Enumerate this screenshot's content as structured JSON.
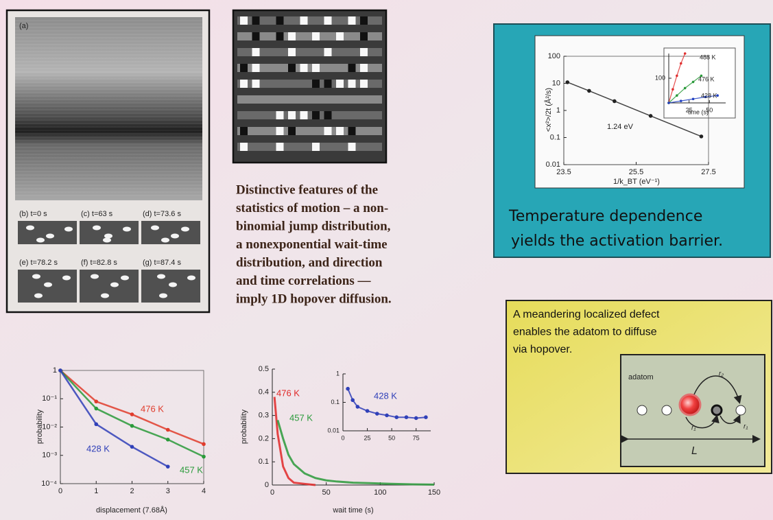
{
  "panel_labels": [
    "(a)",
    "(b) t=0 s",
    "(c) t=63 s",
    "(d) t=73.6 s",
    "(e) t=78.2 s",
    "(f) t=82.8 s",
    "(g) t=87.4 s"
  ],
  "summary_lines": [
    "Distinctive features of the",
    "statistics of motion – a non-",
    "binomial jump distribution,",
    "a nonexponential wait-time",
    "distribution, and direction",
    "and time correlations —",
    "imply 1D hopover diffusion."
  ],
  "arrhenius_caption_lines": [
    "Temperature dependence",
    "yields the activation barrier."
  ],
  "defect_text_lines": [
    "A meandering localized defect",
    "enables the adatom to diffuse",
    "via hopover."
  ],
  "diagram_labels": [
    "adatom",
    "r₂",
    "r₁",
    "r₁",
    "L"
  ],
  "chart_data": [
    {
      "type": "line",
      "x_label": "1/k_BT (eV⁻¹)",
      "y_label": "<x²>/2t (Å²/s)",
      "annotation": "1.24 eV",
      "xlim": [
        23.5,
        27.5
      ],
      "xticks": [
        23.5,
        25.5,
        27.5
      ],
      "ylim": [
        0.01,
        100
      ],
      "ylog": true,
      "yticks": [
        0.01,
        0.1,
        1,
        10,
        100
      ],
      "series": [
        {
          "color": "#222222",
          "x": [
            23.6,
            24.2,
            24.9,
            25.9,
            27.3
          ],
          "values": [
            11,
            5.3,
            2.2,
            0.63,
            0.11
          ]
        }
      ]
    },
    {
      "type": "line",
      "x_label": "time (s)",
      "xlim": [
        0,
        70
      ],
      "xticks": [
        25,
        50
      ],
      "ylim": [
        0,
        200
      ],
      "yticks": [
        100
      ],
      "series": [
        {
          "name": "488 K",
          "color": "#e03030",
          "x": [
            0,
            5,
            10,
            15,
            20
          ],
          "values": [
            0,
            55,
            110,
            160,
            200
          ]
        },
        {
          "name": "476 K",
          "color": "#2a9a3a",
          "x": [
            0,
            10,
            20,
            30,
            40
          ],
          "values": [
            0,
            30,
            60,
            85,
            110
          ]
        },
        {
          "name": "428 K",
          "color": "#2040c0",
          "x": [
            0,
            15,
            30,
            45,
            60
          ],
          "values": [
            0,
            8,
            16,
            24,
            30
          ]
        }
      ]
    },
    {
      "type": "line",
      "x_label": "displacement (7.68Å)",
      "y_label": "probability",
      "x": [
        0,
        1,
        2,
        3,
        4
      ],
      "xlim": [
        0,
        4
      ],
      "xticks": [
        0,
        1,
        2,
        3,
        4
      ],
      "ylim": [
        0.0001,
        1
      ],
      "ylog": true,
      "yticks": [
        {
          "value": 0.0001,
          "label": "10⁻⁴"
        },
        {
          "value": 0.001,
          "label": "10⁻³"
        },
        {
          "value": 0.01,
          "label": "10⁻²"
        },
        {
          "value": 0.1,
          "label": "10⁻¹"
        },
        1
      ],
      "series": [
        {
          "name": "476 K",
          "color": "#e03c2c",
          "values": [
            1,
            0.08,
            0.028,
            0.008,
            0.0025
          ]
        },
        {
          "name": "457 K",
          "color": "#2a9a3a",
          "values": [
            1,
            0.045,
            0.011,
            0.0036,
            0.0009
          ]
        },
        {
          "name": "428 K",
          "color": "#3040b8",
          "values": [
            1,
            0.0126,
            0.002,
            0.0004,
            null
          ]
        }
      ]
    },
    {
      "type": "line",
      "x_label": "wait time (s)",
      "y_label": "probability",
      "xlim": [
        0,
        150
      ],
      "xticks": [
        0,
        50,
        100,
        150
      ],
      "ylim": [
        0,
        0.5
      ],
      "yticks": [
        0,
        0.1,
        0.2,
        0.3,
        0.4,
        0.5
      ],
      "series": [
        {
          "name": "476 K",
          "color": "#e02828",
          "x": [
            2,
            5,
            10,
            15,
            20,
            30,
            40
          ],
          "values": [
            0.38,
            0.22,
            0.08,
            0.03,
            0.01,
            0.005,
            0
          ]
        },
        {
          "name": "457 K",
          "color": "#2a9a3a",
          "x": [
            5,
            10,
            15,
            20,
            30,
            40,
            50,
            60,
            75,
            90,
            110,
            130,
            150
          ],
          "values": [
            0.28,
            0.2,
            0.13,
            0.09,
            0.05,
            0.03,
            0.02,
            0.015,
            0.01,
            0.008,
            0.005,
            0.003,
            0.002
          ]
        }
      ]
    },
    {
      "type": "line",
      "xlim": [
        0,
        90
      ],
      "xticks": [
        0,
        25,
        50,
        75
      ],
      "ylim": [
        0.01,
        1
      ],
      "ylog": true,
      "yticks": [
        0.01,
        0.1,
        1
      ],
      "series": [
        {
          "name": "428 K",
          "color": "#3040b8",
          "x": [
            5,
            10,
            15,
            25,
            35,
            45,
            55,
            65,
            75,
            85
          ],
          "values": [
            0.3,
            0.12,
            0.07,
            0.05,
            0.04,
            0.035,
            0.03,
            0.03,
            0.028,
            0.03
          ]
        }
      ]
    }
  ]
}
